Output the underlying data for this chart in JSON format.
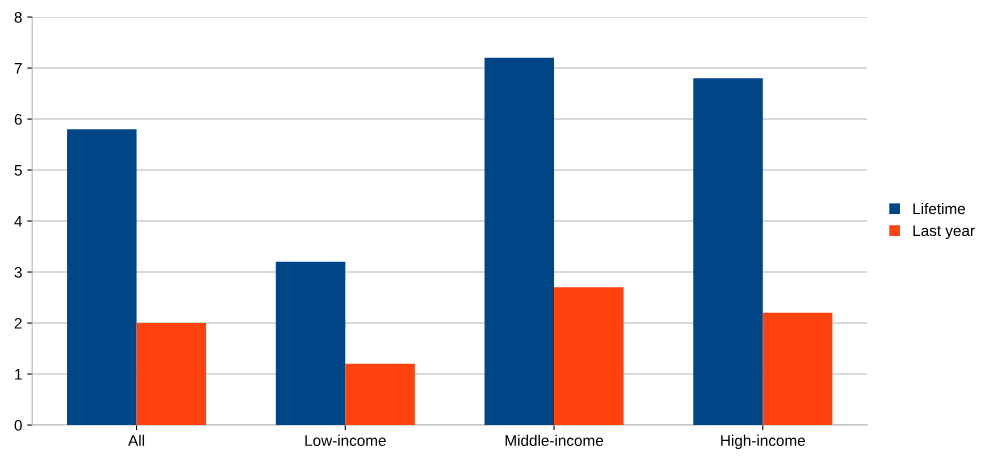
{
  "chart_data": {
    "type": "bar",
    "categories": [
      "All",
      "Low-income",
      "Middle-income",
      "High-income"
    ],
    "series": [
      {
        "name": "Lifetime",
        "color": "#004586",
        "values": [
          5.8,
          3.2,
          7.2,
          6.8
        ]
      },
      {
        "name": "Last year",
        "color": "#ff420e",
        "values": [
          2.0,
          1.2,
          2.7,
          2.2
        ]
      }
    ],
    "ylim": [
      0,
      8
    ],
    "yticks": [
      0,
      1,
      2,
      3,
      4,
      5,
      6,
      7,
      8
    ],
    "grid": "y",
    "legend": "right"
  }
}
